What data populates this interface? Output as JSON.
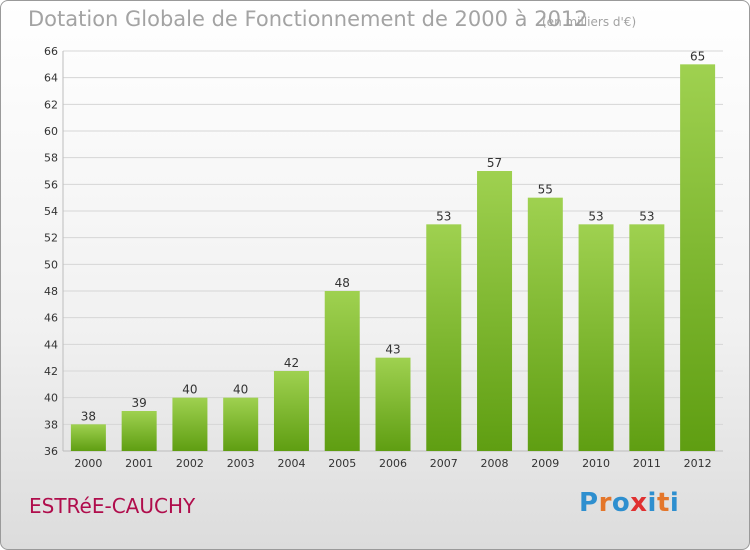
{
  "header": {
    "title": "Dotation Globale de Fonctionnement de 2000 à 2012",
    "unit": "(en milliers d'€)"
  },
  "commune": "ESTRéE-CAUCHY",
  "logo": {
    "text": "Proxiti",
    "letter_colors": [
      "#2e8fcf",
      "#e4762a",
      "#2e8fcf",
      "#e03030",
      "#2e8fcf",
      "#e4762a",
      "#2e8fcf"
    ]
  },
  "colors": {
    "bar_top": "#9fd150",
    "bar_bottom": "#5f9e12",
    "grid": "#d6d6d6",
    "axis_text": "#333333"
  },
  "chart_data": {
    "type": "bar",
    "categories": [
      "2000",
      "2001",
      "2002",
      "2003",
      "2004",
      "2005",
      "2006",
      "2007",
      "2008",
      "2009",
      "2010",
      "2011",
      "2012"
    ],
    "values": [
      38,
      39,
      40,
      40,
      42,
      48,
      43,
      53,
      57,
      55,
      53,
      53,
      65
    ],
    "title": "Dotation Globale de Fonctionnement de 2000 à 2012",
    "xlabel": "",
    "ylabel": "",
    "ylim": [
      36,
      66
    ],
    "yticks": [
      36,
      38,
      40,
      42,
      44,
      46,
      48,
      50,
      52,
      54,
      56,
      58,
      60,
      62,
      64,
      66
    ],
    "grid": true,
    "legend": "none",
    "data_labels": true
  }
}
